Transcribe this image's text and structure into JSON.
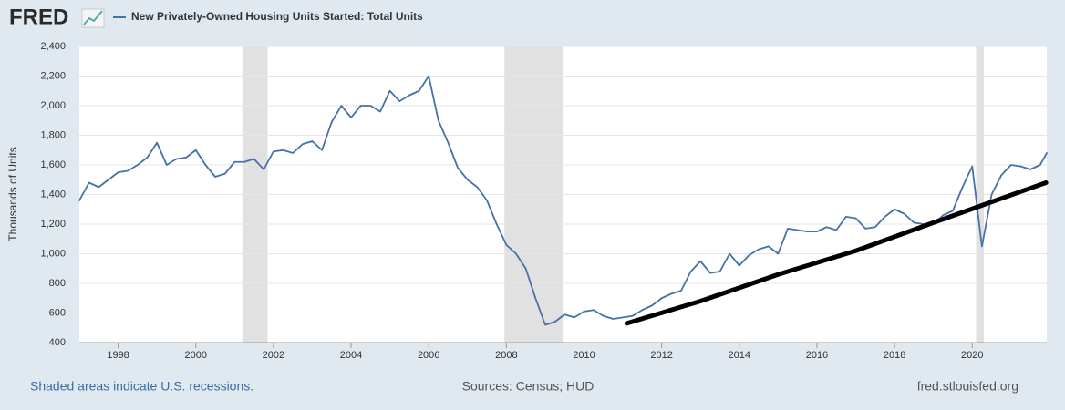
{
  "logo": "FRED",
  "chart_data": {
    "type": "line",
    "y_label": "Thousands of Units",
    "xlim": [
      1997,
      2021.92
    ],
    "xticks": [
      1998,
      2000,
      2002,
      2004,
      2006,
      2008,
      2010,
      2012,
      2014,
      2016,
      2018,
      2020
    ],
    "ylim": [
      400,
      2400
    ],
    "yticks": [
      400,
      600,
      800,
      {
        "value": 1000,
        "label": "1,000"
      },
      {
        "value": 1200,
        "label": "1,200"
      },
      {
        "value": 1400,
        "label": "1,400"
      },
      {
        "value": 1600,
        "label": "1,600"
      },
      {
        "value": 1800,
        "label": "1,800"
      },
      {
        "value": 2000,
        "label": "2,000"
      },
      {
        "value": 2200,
        "label": "2,200"
      },
      {
        "value": 2400,
        "label": "2,400"
      }
    ],
    "grid": true,
    "recessions": [
      [
        2001.2,
        2001.85
      ],
      [
        2007.95,
        2009.45
      ],
      [
        2020.1,
        2020.3
      ]
    ],
    "series": [
      {
        "name": "New Privately-Owned Housing Units Started: Total Units",
        "color": "#4572a7",
        "x": [
          1997,
          1997.25,
          1997.5,
          1997.75,
          1998,
          1998.25,
          1998.5,
          1998.75,
          1999,
          1999.25,
          1999.5,
          1999.75,
          2000,
          2000.25,
          2000.5,
          2000.75,
          2001,
          2001.25,
          2001.5,
          2001.75,
          2002,
          2002.25,
          2002.5,
          2002.75,
          2003,
          2003.25,
          2003.5,
          2003.75,
          2004,
          2004.25,
          2004.5,
          2004.75,
          2005,
          2005.25,
          2005.5,
          2005.75,
          2006,
          2006.25,
          2006.5,
          2006.75,
          2007,
          2007.25,
          2007.5,
          2007.75,
          2008,
          2008.25,
          2008.5,
          2008.75,
          2009,
          2009.25,
          2009.5,
          2009.75,
          2010,
          2010.25,
          2010.5,
          2010.75,
          2011,
          2011.25,
          2011.5,
          2011.75,
          2012,
          2012.25,
          2012.5,
          2012.75,
          2013,
          2013.25,
          2013.5,
          2013.75,
          2014,
          2014.25,
          2014.5,
          2014.75,
          2015,
          2015.25,
          2015.5,
          2015.75,
          2016,
          2016.25,
          2016.5,
          2016.75,
          2017,
          2017.25,
          2017.5,
          2017.75,
          2018,
          2018.25,
          2018.5,
          2018.75,
          2019,
          2019.25,
          2019.5,
          2019.75,
          2020,
          2020.25,
          2020.5,
          2020.75,
          2021,
          2021.25,
          2021.5,
          2021.75,
          2021.92
        ],
        "values": [
          1360,
          1480,
          1450,
          1500,
          1550,
          1560,
          1600,
          1650,
          1750,
          1600,
          1640,
          1650,
          1700,
          1600,
          1520,
          1540,
          1620,
          1620,
          1640,
          1570,
          1690,
          1700,
          1680,
          1740,
          1760,
          1700,
          1890,
          2000,
          1920,
          2000,
          2000,
          1960,
          2100,
          2030,
          2070,
          2100,
          2200,
          1900,
          1750,
          1580,
          1500,
          1450,
          1360,
          1200,
          1060,
          1000,
          900,
          700,
          520,
          540,
          590,
          570,
          610,
          620,
          580,
          560,
          570,
          580,
          620,
          650,
          700,
          730,
          750,
          880,
          950,
          870,
          880,
          1000,
          920,
          990,
          1030,
          1050,
          1000,
          1170,
          1160,
          1150,
          1150,
          1180,
          1160,
          1250,
          1240,
          1170,
          1180,
          1250,
          1300,
          1270,
          1210,
          1200,
          1200,
          1260,
          1290,
          1450,
          1590,
          1050,
          1400,
          1530,
          1600,
          1590,
          1570,
          1600,
          1680
        ]
      }
    ],
    "trend": {
      "color": "#000000",
      "x": [
        2011.1,
        2013,
        2015,
        2017,
        2019,
        2020.5,
        2021.9
      ],
      "values": [
        530,
        680,
        860,
        1020,
        1210,
        1350,
        1480
      ]
    },
    "footer": {
      "note": "Shaded areas indicate U.S. recessions.",
      "source": "Sources: Census; HUD",
      "site": "fred.stlouisfed.org"
    }
  }
}
